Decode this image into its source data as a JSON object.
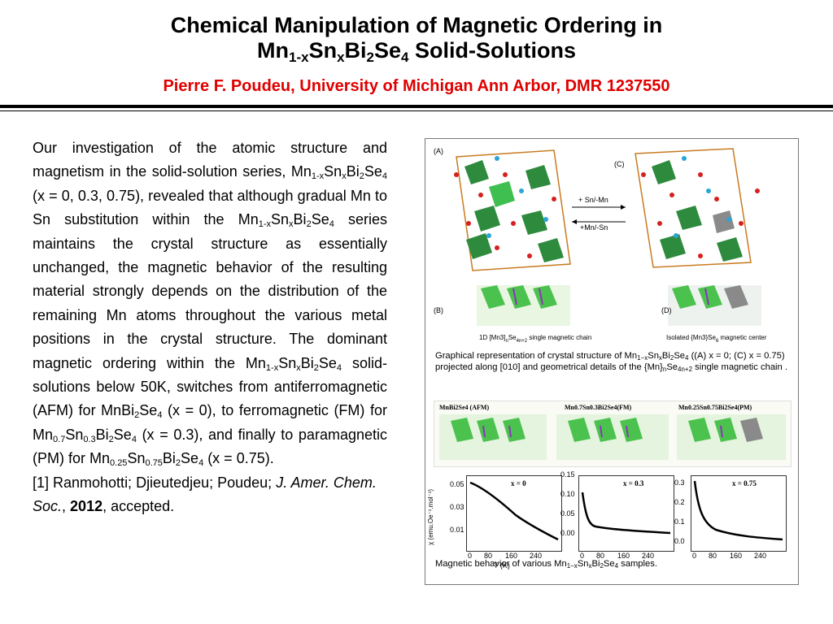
{
  "header": {
    "title_line1": "Chemical Manipulation of Magnetic Ordering in",
    "title_line2_parts": [
      "Mn",
      "1-x",
      "Sn",
      "x",
      "Bi",
      "2",
      "Se",
      "4",
      " Solid-Solutions"
    ],
    "author": "Pierre F. Poudeu, University of Michigan Ann Arbor, DMR 1237550"
  },
  "body": {
    "p1_a": "Our investigation of the atomic structure and magnetism in the solid-solution series, Mn",
    "p1_s1": "1-x",
    "p1_b": "Sn",
    "p1_s2": "x",
    "p1_c": "Bi",
    "p1_s3": "2",
    "p1_d": "Se",
    "p1_s4": "4",
    "p1_e": " (x = 0, 0.3, 0.75), revealed that although gradual Mn to Sn substitution within the Mn",
    "p1_s5": "1-x",
    "p1_f": "Sn",
    "p1_s6": "x",
    "p1_g": "Bi",
    "p1_s7": "2",
    "p1_h": "Se",
    "p1_s8": "4",
    "p1_i": " series maintains the crystal structure as essentially unchanged, the magnetic behavior of the resulting material strongly depends on the distribution of the remaining Mn atoms throughout the various metal positions in the crystal structure. The dominant magnetic ordering within the Mn",
    "p1_s9": "1-x",
    "p1_j": "Sn",
    "p1_s10": "x",
    "p1_k": "Bi",
    "p1_s11": "2",
    "p1_l": "Se",
    "p1_s12": "4",
    "p1_m": " solid-solutions below 50K, switches from antiferromagnetic (AFM) for MnBi",
    "p1_s13": "2",
    "p1_n": "Se",
    "p1_s14": "4",
    "p1_o": " (x = 0), to ferromagnetic (FM) for Mn",
    "p1_s15": "0.7",
    "p1_p": "Sn",
    "p1_s16": "0.3",
    "p1_q": "Bi",
    "p1_s17": "2",
    "p1_r": "Se",
    "p1_s18": "4",
    "p1_s": " (x = 0.3), and finally to paramagnetic (PM) for Mn",
    "p1_s19": "0.25",
    "p1_t": "Sn",
    "p1_s20": "0.75",
    "p1_u": "Bi",
    "p1_s21": "2",
    "p1_v": "Se",
    "p1_s22": "4",
    "p1_w": " (x = 0.75).",
    "ref_a": "[1] Ranmohotti; Djieutedjeu; Poudeu; ",
    "ref_journal": "J. Amer. Chem. Soc.",
    "ref_b": ", ",
    "ref_year": "2012",
    "ref_c": ", accepted."
  },
  "figure": {
    "caption1_a": "Graphical representation of crystal structure of Mn",
    "caption1_s1": "1−x",
    "caption1_b": "Sn",
    "caption1_s2": "x",
    "caption1_c": "Bi",
    "caption1_s3": "2",
    "caption1_d": "Se",
    "caption1_s4": "4",
    "caption1_e": " ((A) x = 0; (C) x = 0.75) projected along [010] and geometrical details of the {Mn}",
    "caption1_s5": "n",
    "caption1_f": "Se",
    "caption1_s6": "4n+2",
    "caption1_g": " single magnetic chain  .",
    "caption2_a": "Magnetic behavior of various Mn",
    "caption2_s1": "1−x",
    "caption2_b": "Sn",
    "caption2_s2": "x",
    "caption2_c": "Bi",
    "caption2_s3": "2",
    "caption2_d": "Se",
    "caption2_s4": "4",
    "caption2_e": " samples.",
    "panel_labels": [
      "(A)",
      "(C)",
      "(B)",
      "(D)"
    ],
    "arrow_labels": [
      "+ Sn/-Mn",
      "+Mn/-Sn"
    ],
    "chain_b_label": "1D [Mn3]",
    "chain_b_sub": "n",
    "chain_b_label2": "Se",
    "chain_b_sub2": "4n+2",
    "chain_b_label3": " single  magnetic chain",
    "chain_d_label": "Isolated {Mn3}Se",
    "chain_d_sub": "6",
    "chain_d_label2": " magnetic center",
    "strip_labels": [
      "MnBi2Se4 (AFM)",
      "Mn0.7Sn0.3Bi2Se4(FM)",
      "Mn0.25Sn0.75Bi2Se4(PM)"
    ],
    "plots": [
      {
        "label": "x = 0",
        "yticks": [
          "0.05",
          "0.03",
          "0.01"
        ],
        "xticks": [
          "0",
          "80",
          "160",
          "240"
        ]
      },
      {
        "label": "x = 0.3",
        "yticks": [
          "0.15",
          "0.10",
          "0.05",
          "0.00"
        ],
        "xticks": [
          "0",
          "80",
          "160",
          "240"
        ]
      },
      {
        "label": "x = 0.75",
        "yticks": [
          "0.3",
          "0.2",
          "0.1",
          "0.0"
        ],
        "xticks": [
          "0",
          "80",
          "160",
          "240"
        ]
      }
    ],
    "plot_xlabel": "T (K)",
    "plot_ylabel": "χ (emu.Oe⁻¹.mol⁻¹)",
    "colors": {
      "title": "#000000",
      "author": "#e00000",
      "octahedra": "#2db84a",
      "selenium": "#d62020",
      "bismuth": "#2aa5d6"
    }
  }
}
